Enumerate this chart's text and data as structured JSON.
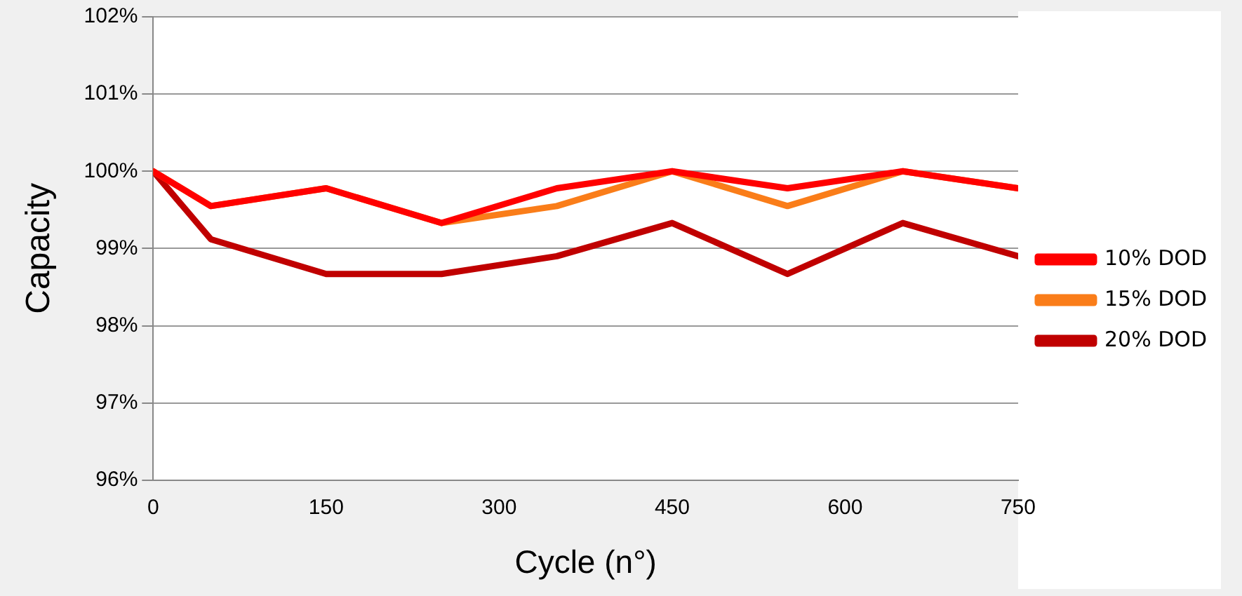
{
  "chart_data": {
    "type": "line",
    "xlabel": "Cycle (n°)",
    "ylabel": "Capacity",
    "x": [
      0,
      50,
      150,
      250,
      350,
      450,
      550,
      650,
      750
    ],
    "series": [
      {
        "name": "10% DOD",
        "color": "#ff0000",
        "values": [
          100,
          99.55,
          99.78,
          99.33,
          99.78,
          100,
          99.78,
          100,
          99.78
        ]
      },
      {
        "name": "15% DOD",
        "color": "#fa7d19",
        "values": [
          100,
          99.55,
          99.78,
          99.33,
          99.55,
          100,
          99.55,
          100,
          99.78
        ]
      },
      {
        "name": "20% DOD",
        "color": "#c00000",
        "values": [
          100,
          99.12,
          98.67,
          98.67,
          98.9,
          99.33,
          98.67,
          99.33,
          98.9
        ]
      }
    ],
    "xlim": [
      0,
      750
    ],
    "xticks": [
      0,
      150,
      300,
      450,
      600,
      750
    ],
    "ylim": [
      96,
      102
    ],
    "yticks": [
      {
        "value": 96,
        "label": "96%"
      },
      {
        "value": 97,
        "label": "97%"
      },
      {
        "value": 98,
        "label": "98%"
      },
      {
        "value": 99,
        "label": "99%"
      },
      {
        "value": 100,
        "label": "100%"
      },
      {
        "value": 101,
        "label": "101%"
      },
      {
        "value": 102,
        "label": "102%"
      }
    ],
    "grid": "y",
    "legend": "right",
    "marker": "none",
    "line_style": "solid"
  }
}
